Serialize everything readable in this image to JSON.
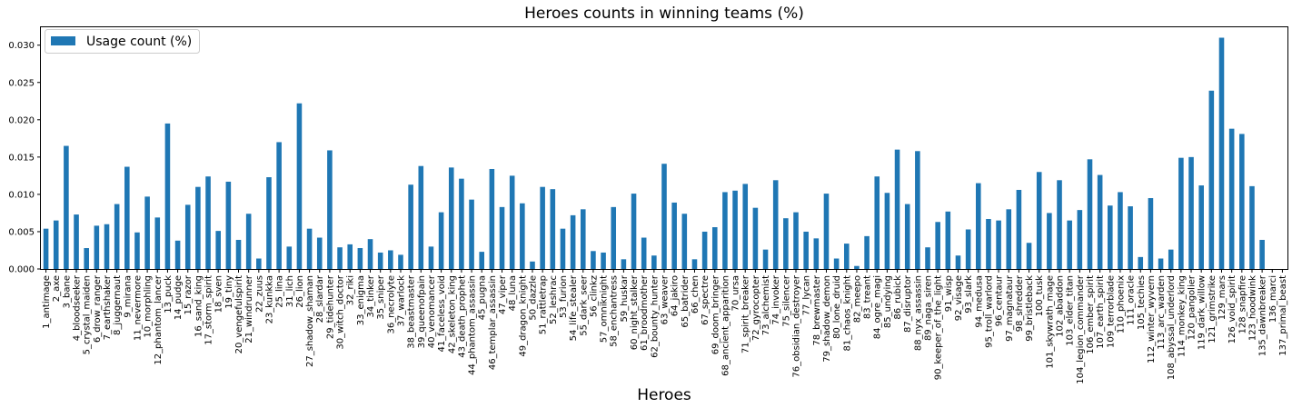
{
  "chart_data": {
    "type": "bar",
    "title": "Heroes counts in winning teams (%)",
    "xlabel": "Heroes",
    "ylabel": "",
    "ylim": [
      0,
      0.0324
    ],
    "yticks": [
      "0.000",
      "0.005",
      "0.010",
      "0.015",
      "0.020",
      "0.025",
      "0.030"
    ],
    "color": "#1f77b4",
    "legend_placement": "top-left",
    "grid": false,
    "series": [
      {
        "name": "Usage count (%)"
      }
    ],
    "categories": [
      "1_antimage",
      "2_axe",
      "3_bane",
      "4_bloodseeker",
      "5_crystal_maiden",
      "6_drow_ranger",
      "7_earthshaker",
      "8_juggernaut",
      "9_mirana",
      "11_nevermore",
      "10_morphling",
      "12_phantom_lancer",
      "13_puck",
      "14_pudge",
      "15_razor",
      "16_sand_king",
      "17_storm_spirit",
      "18_sven",
      "19_tiny",
      "20_vengefulspirit",
      "21_windrunner",
      "22_zuus",
      "23_kunkka",
      "25_lina",
      "31_lich",
      "26_lion",
      "27_shadow_shaman",
      "28_slardar",
      "29_tidehunter",
      "30_witch_doctor",
      "32_riki",
      "33_enigma",
      "34_tinker",
      "35_sniper",
      "36_necrolyte",
      "37_warlock",
      "38_beastmaster",
      "39_queenofpain",
      "40_venomancer",
      "41_faceless_void",
      "42_skeleton_king",
      "43_death_prophet",
      "44_phantom_assassin",
      "45_pugna",
      "46_templar_assassin",
      "47_viper",
      "48_luna",
      "49_dragon_knight",
      "50_dazzle",
      "51_rattletrap",
      "52_leshrac",
      "53_furion",
      "54_life_stealer",
      "55_dark_seer",
      "56_clinkz",
      "57_omniknight",
      "58_enchantress",
      "59_huskar",
      "60_night_stalker",
      "61_broodmother",
      "62_bounty_hunter",
      "63_weaver",
      "64_jakiro",
      "65_batrider",
      "66_chen",
      "67_spectre",
      "69_doom_bringer",
      "68_ancient_apparition",
      "70_ursa",
      "71_spirit_breaker",
      "72_gyrocopter",
      "73_alchemist",
      "74_invoker",
      "75_silencer",
      "76_obsidian_destroyer",
      "77_lycan",
      "78_brewmaster",
      "79_shadow_demon",
      "80_lone_druid",
      "81_chaos_knight",
      "82_meepo",
      "83_treant",
      "84_ogre_magi",
      "85_undying",
      "86_rubick",
      "87_disruptor",
      "88_nyx_assassin",
      "89_naga_siren",
      "90_keeper_of_the_light",
      "91_wisp",
      "92_visage",
      "93_slark",
      "94_medusa",
      "95_troll_warlord",
      "96_centaur",
      "97_magnataur",
      "98_shredder",
      "99_bristleback",
      "100_tusk",
      "101_skywrath_mage",
      "102_abaddon",
      "103_elder_titan",
      "104_legion_commander",
      "106_ember_spirit",
      "107_earth_spirit",
      "109_terrorblade",
      "110_phoenix",
      "111_oracle",
      "105_techies",
      "112_winter_wyvern",
      "113_arc_warden",
      "108_abyssal_underlord",
      "114_monkey_king",
      "120_pangolier",
      "119_dark_willow",
      "121_grimstrike",
      "129_mars",
      "126_void_spirit",
      "128_snapfire",
      "123_hoodwink",
      "135_dawnbreaker",
      "136_marci",
      "137_primal_beast"
    ],
    "values": [
      0.0054,
      0.0065,
      0.0165,
      0.0073,
      0.0028,
      0.0058,
      0.006,
      0.0087,
      0.0137,
      0.0049,
      0.0097,
      0.0069,
      0.0195,
      0.0038,
      0.0086,
      0.011,
      0.0124,
      0.0051,
      0.0117,
      0.0039,
      0.0074,
      0.0014,
      0.0123,
      0.017,
      0.003,
      0.0222,
      0.0054,
      0.0042,
      0.0159,
      0.0029,
      0.0033,
      0.0028,
      0.004,
      0.0022,
      0.0025,
      0.0019,
      0.0113,
      0.0138,
      0.003,
      0.0076,
      0.0136,
      0.0121,
      0.0093,
      0.0023,
      0.0134,
      0.0083,
      0.0125,
      0.0088,
      0.001,
      0.011,
      0.0107,
      0.0054,
      0.0072,
      0.008,
      0.0024,
      0.0022,
      0.0083,
      0.0013,
      0.0101,
      0.0042,
      0.0018,
      0.0141,
      0.0089,
      0.0074,
      0.0013,
      0.005,
      0.0056,
      0.0103,
      0.0105,
      0.0114,
      0.0082,
      0.0026,
      0.0119,
      0.0068,
      0.0076,
      0.005,
      0.0041,
      0.0101,
      0.0014,
      0.0034,
      0.0004,
      0.0044,
      0.0124,
      0.0102,
      0.016,
      0.0087,
      0.0158,
      0.0029,
      0.0063,
      0.0077,
      0.0018,
      0.0053,
      0.0115,
      0.0067,
      0.0065,
      0.008,
      0.0106,
      0.0035,
      0.013,
      0.0075,
      0.0119,
      0.0065,
      0.0079,
      0.0147,
      0.0126,
      0.0085,
      0.0103,
      0.0084,
      0.0016,
      0.0095,
      0.0014,
      0.0026,
      0.0149,
      0.015,
      0.0112,
      0.0239,
      0.031,
      0.0188,
      0.0181,
      0.0111,
      0.0039,
      0.0,
      0.0
    ]
  }
}
